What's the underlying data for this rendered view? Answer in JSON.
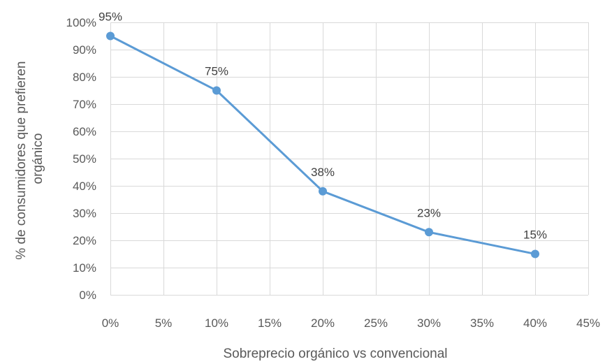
{
  "chart_data": {
    "type": "line",
    "title": "",
    "xlabel": "Sobreprecio orgánico vs convencional",
    "ylabel_lines": [
      "% de consumidores que prefieren",
      "orgánico"
    ],
    "x_ticks": [
      "0%",
      "5%",
      "10%",
      "15%",
      "20%",
      "25%",
      "30%",
      "35%",
      "40%",
      "45%"
    ],
    "y_ticks": [
      "0%",
      "10%",
      "20%",
      "30%",
      "40%",
      "50%",
      "60%",
      "70%",
      "80%",
      "90%",
      "100%"
    ],
    "xlim": [
      0,
      45
    ],
    "ylim": [
      0,
      100
    ],
    "grid": true,
    "legend": "none",
    "series": [
      {
        "x": [
          0,
          10,
          20,
          30,
          40
        ],
        "y": [
          95,
          75,
          38,
          23,
          15
        ],
        "labels": [
          "95%",
          "75%",
          "38%",
          "23%",
          "15%"
        ],
        "color": "#5b9bd5"
      }
    ]
  }
}
